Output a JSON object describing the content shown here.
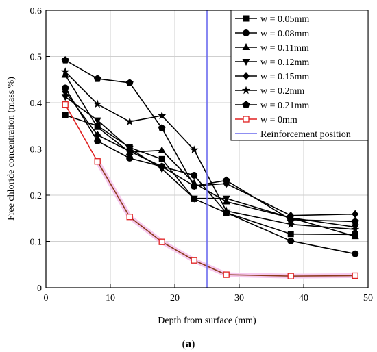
{
  "chart_data": {
    "type": "line",
    "xlabel": "Depth from surface (mm)",
    "ylabel": "Free chloride concentration (mass %)",
    "caption_label": "a",
    "xlim": [
      0,
      50
    ],
    "ylim": [
      0,
      0.6
    ],
    "xticks": [
      0,
      10,
      20,
      30,
      40,
      50
    ],
    "yticks": [
      0,
      0.1,
      0.2,
      0.3,
      0.4,
      0.5,
      0.6
    ],
    "xtick_labels": [
      "0",
      "10",
      "20",
      "30",
      "40",
      "50"
    ],
    "ytick_labels": [
      "0",
      "0.1",
      "0.2",
      "0.3",
      "0.4",
      "0.5",
      "0.6"
    ],
    "grid": true,
    "legend_position": "top-right",
    "colors": {
      "black": "#000000",
      "red": "#e02020",
      "brown": "#8b3a1a",
      "blue": "#6a6aee"
    },
    "series": [
      {
        "name": "w = 0.05mm",
        "marker": "square",
        "x": [
          3,
          8,
          13,
          18,
          23,
          28,
          38,
          48
        ],
        "y": [
          0.373,
          0.35,
          0.303,
          0.278,
          0.192,
          0.162,
          0.116,
          0.115
        ]
      },
      {
        "name": "w = 0.08mm",
        "marker": "circle",
        "x": [
          3,
          8,
          13,
          18,
          23,
          28,
          38,
          48
        ],
        "y": [
          0.432,
          0.317,
          0.28,
          0.262,
          0.243,
          0.162,
          0.101,
          0.073
        ]
      },
      {
        "name": "w = 0.11mm",
        "marker": "triangle-up",
        "x": [
          3,
          8,
          13,
          18,
          23,
          28,
          38,
          48
        ],
        "y": [
          0.46,
          0.347,
          0.293,
          0.297,
          0.226,
          0.186,
          0.151,
          0.111
        ]
      },
      {
        "name": "w = 0.12mm",
        "marker": "triangle-down",
        "x": [
          3,
          8,
          13,
          18,
          23,
          28,
          38,
          48
        ],
        "y": [
          0.413,
          0.362,
          0.301,
          0.257,
          0.193,
          0.193,
          0.151,
          0.131
        ]
      },
      {
        "name": "w = 0.15mm",
        "marker": "diamond",
        "x": [
          3,
          8,
          13,
          18,
          23,
          28,
          38,
          48
        ],
        "y": [
          0.424,
          0.33,
          0.295,
          0.262,
          0.22,
          0.225,
          0.156,
          0.159
        ]
      },
      {
        "name": "w = 0.2mm",
        "marker": "star",
        "x": [
          3,
          8,
          13,
          18,
          23,
          28,
          38,
          48
        ],
        "y": [
          0.467,
          0.397,
          0.359,
          0.372,
          0.298,
          0.166,
          0.137,
          0.126
        ]
      },
      {
        "name": "w = 0.21mm",
        "marker": "pentagon",
        "x": [
          3,
          8,
          13,
          18,
          23,
          28,
          38,
          48
        ],
        "y": [
          0.492,
          0.452,
          0.443,
          0.345,
          0.22,
          0.232,
          0.147,
          0.143
        ]
      },
      {
        "name": "w = 0mm",
        "marker": "open-square",
        "x": [
          3,
          8,
          13,
          18,
          23,
          28,
          38,
          48
        ],
        "y": [
          0.396,
          0.273,
          0.153,
          0.099,
          0.059,
          0.028,
          0.025,
          0.026
        ]
      }
    ],
    "reference_line": {
      "name": "Reinforcement position",
      "x": 25
    }
  }
}
